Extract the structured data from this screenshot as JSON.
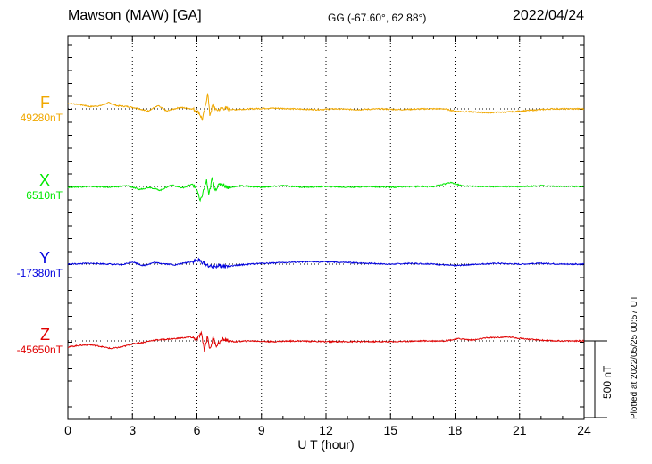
{
  "header": {
    "station": "Mawson (MAW)  [GA]",
    "coords": "GG (-67.60°,  62.88°)",
    "date": "2022/04/24"
  },
  "footer": {
    "xlabel": "U T (hour)",
    "plotted_at": "Plotted at 2022/05/25 00:57 UT",
    "scale_label": "500 nT"
  },
  "chart_data": {
    "type": "line",
    "x_range": [
      0,
      24
    ],
    "x_ticks": [
      0,
      3,
      6,
      9,
      12,
      15,
      18,
      21,
      24
    ],
    "grid": "dotted vertical lines at 3-hour intervals",
    "scale_bar_nT": 500,
    "series": [
      {
        "name": "F",
        "baseline": "49280nT",
        "color": "#f0a800",
        "x": [
          0,
          0.5,
          1,
          1.5,
          1.9,
          2.3,
          2.8,
          3.2,
          3.7,
          4.2,
          4.6,
          5.2,
          5.8,
          6.1,
          6.25,
          6.4,
          6.5,
          6.6,
          6.75,
          6.9,
          7.2,
          7.7,
          8.5,
          9.5,
          10.5,
          11.5,
          12.5,
          13.5,
          14.5,
          15.5,
          16.5,
          17.5,
          18,
          18.8,
          19.5,
          20.5,
          21.5,
          22.5,
          23.5,
          24
        ],
        "dev_nT": [
          35,
          30,
          15,
          20,
          40,
          20,
          15,
          5,
          -15,
          20,
          -15,
          10,
          0,
          -25,
          -70,
          15,
          110,
          -40,
          30,
          -10,
          5,
          -5,
          0,
          5,
          0,
          -5,
          0,
          -5,
          0,
          -5,
          0,
          0,
          -15,
          -20,
          -25,
          -20,
          -10,
          0,
          0,
          0
        ]
      },
      {
        "name": "X",
        "baseline": "6510nT",
        "color": "#00e800",
        "x": [
          0,
          1,
          2,
          2.8,
          3.3,
          3.8,
          4.3,
          4.8,
          5.3,
          5.8,
          6,
          6.15,
          6.3,
          6.45,
          6.55,
          6.7,
          6.85,
          7.1,
          7.5,
          8,
          9,
          10,
          11,
          12,
          13,
          14,
          15,
          16,
          17,
          17.8,
          18.3,
          19,
          20,
          21,
          22,
          23,
          24
        ],
        "dev_nT": [
          -5,
          0,
          -5,
          5,
          -20,
          -5,
          -25,
          10,
          -10,
          15,
          -20,
          -100,
          -30,
          40,
          -60,
          50,
          -20,
          20,
          -10,
          5,
          -5,
          5,
          -5,
          0,
          -5,
          0,
          -5,
          0,
          0,
          25,
          5,
          0,
          0,
          0,
          5,
          0,
          0
        ]
      },
      {
        "name": "Y",
        "baseline": "-17380nT",
        "color": "#0000dd",
        "x": [
          0,
          1,
          2,
          2.5,
          3,
          3.5,
          4,
          5,
          5.7,
          6.1,
          6.4,
          6.7,
          7,
          7.5,
          8,
          9,
          10,
          11,
          12,
          13,
          14,
          15,
          16,
          17,
          18,
          19,
          20,
          21,
          22,
          23,
          24
        ],
        "dev_nT": [
          0,
          5,
          0,
          -5,
          15,
          -10,
          10,
          -5,
          15,
          25,
          0,
          -20,
          -10,
          -15,
          -5,
          5,
          10,
          15,
          15,
          10,
          5,
          0,
          5,
          0,
          -10,
          0,
          5,
          0,
          5,
          0,
          0
        ]
      },
      {
        "name": "Z",
        "baseline": "-45650nT",
        "color": "#e00000",
        "x": [
          0,
          0.5,
          1,
          1.5,
          2,
          2.5,
          3,
          3.5,
          4,
          5,
          5.7,
          6,
          6.2,
          6.35,
          6.5,
          6.6,
          6.75,
          6.9,
          7.2,
          7.7,
          8.5,
          9.5,
          10.5,
          12,
          13.5,
          15,
          16.5,
          17.5,
          18.2,
          18.8,
          19.5,
          20.5,
          21.5,
          22.5,
          23.5,
          24
        ],
        "dev_nT": [
          -40,
          -30,
          -25,
          -35,
          -50,
          -40,
          -20,
          -10,
          5,
          15,
          25,
          10,
          50,
          -60,
          35,
          -60,
          20,
          -30,
          10,
          -5,
          0,
          -5,
          0,
          -5,
          -5,
          -5,
          0,
          0,
          15,
          5,
          20,
          25,
          10,
          0,
          0,
          0
        ]
      }
    ]
  }
}
